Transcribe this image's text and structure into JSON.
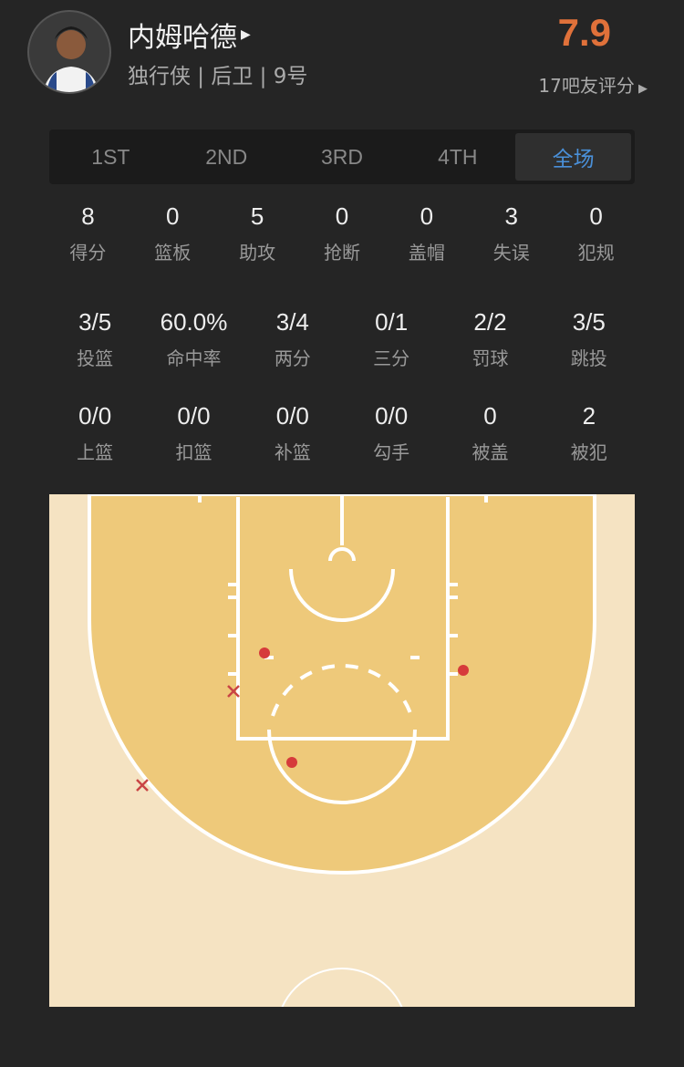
{
  "player": {
    "name": "内姆哈德",
    "info": "独行侠 | 后卫 | 9号",
    "rating": "7.9",
    "rating_label": "17吧友评分",
    "rating_color": "#e0713a"
  },
  "tabs": [
    {
      "label": "1ST"
    },
    {
      "label": "2ND"
    },
    {
      "label": "3RD"
    },
    {
      "label": "4TH"
    },
    {
      "label": "全场",
      "active": true
    }
  ],
  "basic_stats": [
    {
      "value": "8",
      "label": "得分"
    },
    {
      "value": "0",
      "label": "篮板"
    },
    {
      "value": "5",
      "label": "助攻"
    },
    {
      "value": "0",
      "label": "抢断"
    },
    {
      "value": "0",
      "label": "盖帽"
    },
    {
      "value": "3",
      "label": "失误"
    },
    {
      "value": "0",
      "label": "犯规"
    }
  ],
  "shooting_stats": [
    {
      "value": "3/5",
      "label": "投篮"
    },
    {
      "value": "60.0%",
      "label": "命中率"
    },
    {
      "value": "3/4",
      "label": "两分"
    },
    {
      "value": "0/1",
      "label": "三分"
    },
    {
      "value": "2/2",
      "label": "罚球"
    },
    {
      "value": "3/5",
      "label": "跳投"
    }
  ],
  "shot_types": [
    {
      "value": "0/0",
      "label": "上篮"
    },
    {
      "value": "0/0",
      "label": "扣篮"
    },
    {
      "value": "0/0",
      "label": "补篮"
    },
    {
      "value": "0/0",
      "label": "勾手"
    },
    {
      "value": "0",
      "label": "被盖"
    },
    {
      "value": "2",
      "label": "被犯"
    }
  ],
  "shot_chart": {
    "made_color": "#d63b3b",
    "missed_color": "#c94545",
    "shots": [
      {
        "result": "made"
      },
      {
        "result": "made"
      },
      {
        "result": "made"
      },
      {
        "result": "missed"
      },
      {
        "result": "missed"
      }
    ]
  }
}
